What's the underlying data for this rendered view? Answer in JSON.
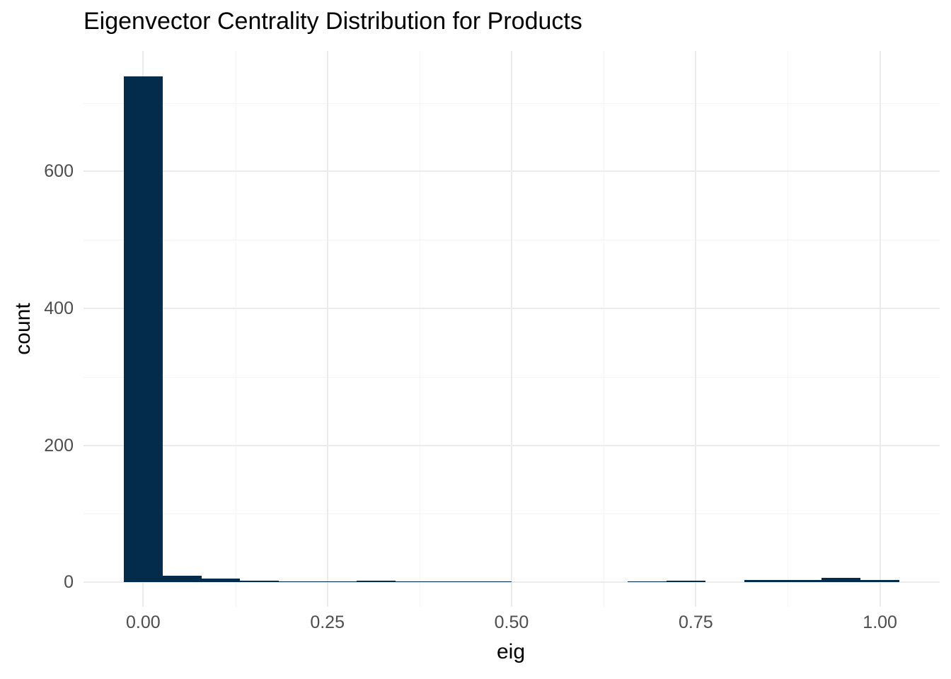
{
  "title": "Eigenvector Centrality Distribution for Products",
  "chart_data": {
    "type": "bar",
    "subtype": "histogram",
    "title": "Eigenvector Centrality Distribution for Products",
    "xlabel": "eig",
    "ylabel": "count",
    "legend": "none",
    "grid": true,
    "xlim": [
      -0.081,
      1.081
    ],
    "ylim": [
      -36,
      776
    ],
    "x_ticks": {
      "values": [
        0,
        0.25,
        0.5,
        0.75,
        1.0
      ],
      "labels": [
        "0.00",
        "0.25",
        "0.50",
        "0.75",
        "1.00"
      ]
    },
    "y_ticks": {
      "values": [
        0,
        200,
        400,
        600
      ],
      "labels": [
        "0",
        "200",
        "400",
        "600"
      ]
    },
    "x_minor_ticks": [
      0.125,
      0.375,
      0.625,
      0.875
    ],
    "y_minor_ticks": [
      100,
      300,
      500,
      700
    ],
    "binwidth": 0.05263,
    "bins": [
      {
        "center": 0.0,
        "count": 739
      },
      {
        "center": 0.05263,
        "count": 9
      },
      {
        "center": 0.10526,
        "count": 5
      },
      {
        "center": 0.15789,
        "count": 2
      },
      {
        "center": 0.21053,
        "count": 1
      },
      {
        "center": 0.26316,
        "count": 1
      },
      {
        "center": 0.31579,
        "count": 2
      },
      {
        "center": 0.36842,
        "count": 1
      },
      {
        "center": 0.42105,
        "count": 1
      },
      {
        "center": 0.47368,
        "count": 1
      },
      {
        "center": 0.52632,
        "count": 0
      },
      {
        "center": 0.57895,
        "count": 0
      },
      {
        "center": 0.63158,
        "count": 0
      },
      {
        "center": 0.68421,
        "count": 1
      },
      {
        "center": 0.73684,
        "count": 2
      },
      {
        "center": 0.78947,
        "count": 0
      },
      {
        "center": 0.84211,
        "count": 3
      },
      {
        "center": 0.89474,
        "count": 3
      },
      {
        "center": 0.94737,
        "count": 6
      },
      {
        "center": 1.0,
        "count": 3
      }
    ],
    "colors": {
      "bar": "#032B4C",
      "grid_major": "#EBEBEB",
      "grid_minor": "#F4F4F4",
      "tick_label": "#4D4D4D",
      "text": "#000000",
      "background": "#FFFFFF"
    }
  }
}
